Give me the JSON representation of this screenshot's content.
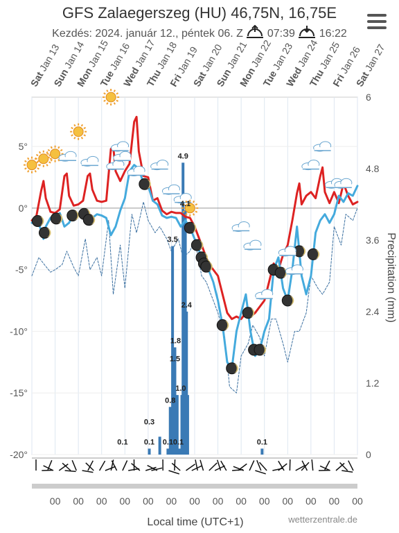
{
  "title": "GFS Zalaegerszeg (HU) 46,75N, 16,75E",
  "subtitle_prefix": "Kezdés: 2024. január 12., péntek 06. Z",
  "sunrise_time": "07:39",
  "sunset_time": "16:22",
  "menu_icon": "hamburger-menu-icon",
  "chart_data": {
    "type": "line",
    "x_axis": {
      "day_labels": [
        {
          "day": "Sat",
          "date": "Jan 13"
        },
        {
          "day": "Sun",
          "date": "Jan 14"
        },
        {
          "day": "Mon",
          "date": "Jan 15"
        },
        {
          "day": "Tue",
          "date": "Jan 16"
        },
        {
          "day": "Wed",
          "date": "Jan 17"
        },
        {
          "day": "Thu",
          "date": "Jan 18"
        },
        {
          "day": "Fri",
          "date": "Jan 19"
        },
        {
          "day": "Sat",
          "date": "Jan 20"
        },
        {
          "day": "Sun",
          "date": "Jan 21"
        },
        {
          "day": "Mon",
          "date": "Jan 22"
        },
        {
          "day": "Tue",
          "date": "Jan 23"
        },
        {
          "day": "Wed",
          "date": "Jan 24"
        },
        {
          "day": "Thu",
          "date": "Jan 25"
        },
        {
          "day": "Fri",
          "date": "Jan 26"
        },
        {
          "day": "Sat",
          "date": "Jan 27"
        }
      ],
      "hour_tick_label": "00",
      "xlabel": "Local time (UTC+1)"
    },
    "y_left": {
      "ticks": [
        "5°",
        "0°",
        "-5°",
        "-10°",
        "-15°",
        "-20°"
      ],
      "values": [
        5,
        0,
        -5,
        -10,
        -15,
        -20
      ],
      "ylim": [
        -20,
        9
      ]
    },
    "y_right": {
      "ticks": [
        "6",
        "4.8",
        "3.6",
        "2.4",
        "1.2",
        "0"
      ],
      "values": [
        6,
        4.8,
        3.6,
        2.4,
        1.2,
        0
      ],
      "ylabel": "Precipitation (mm)",
      "ylim": [
        0,
        6
      ]
    },
    "series": [
      {
        "name": "",
        "kind": "max_temperature",
        "color": "#dd2222",
        "x": [
          0.0,
          0.2,
          0.4,
          0.5,
          0.6,
          0.8,
          1.0,
          1.2,
          1.4,
          1.5,
          1.6,
          1.8,
          2.0,
          2.2,
          2.4,
          2.5,
          2.6,
          2.8,
          3.0,
          3.2,
          3.4,
          3.5,
          3.6,
          3.8,
          4.0,
          4.2,
          4.4,
          4.5,
          4.6,
          4.8,
          5.0,
          5.2,
          5.4,
          5.6,
          5.8,
          6.0,
          6.2,
          6.4,
          6.6,
          6.8,
          7.0,
          7.2,
          7.4,
          7.6,
          7.8,
          8.0,
          8.2,
          8.4,
          8.6,
          8.8,
          9.0,
          9.2,
          9.4,
          9.6,
          9.8,
          10.0,
          10.2,
          10.4,
          10.6,
          10.8,
          11.0,
          11.2,
          11.4,
          11.5,
          11.6,
          11.8,
          12.0,
          12.2,
          12.4,
          12.5,
          12.6,
          12.8,
          13.0,
          13.2,
          13.4,
          13.6,
          13.8,
          14.0
        ],
        "y": [
          -1.0,
          -0.6,
          1.4,
          2.2,
          0.8,
          -0.3,
          -0.4,
          -0.1,
          2.6,
          2.8,
          1.0,
          0.2,
          0.3,
          0.6,
          2.6,
          2.8,
          1.5,
          0.6,
          0.5,
          0.6,
          4.8,
          5.0,
          3.0,
          2.2,
          3.0,
          3.6,
          7.0,
          7.4,
          4.6,
          2.6,
          2.5,
          0.6,
          0.8,
          -0.2,
          -0.5,
          -0.3,
          -0.4,
          -0.4,
          -0.7,
          -0.8,
          -1.5,
          -2.5,
          -3.5,
          -4.5,
          -5.0,
          -5.5,
          -7.0,
          -8.5,
          -9.0,
          -8.8,
          -9.0,
          -8.5,
          -8.8,
          -8.5,
          -8.0,
          -7.5,
          -6.0,
          -4.5,
          -5.0,
          -3.8,
          -3.0,
          -1.0,
          1.2,
          2.0,
          0.3,
          1.0,
          1.3,
          0.8,
          2.6,
          3.3,
          1.3,
          0.4,
          1.3,
          0.4,
          2.0,
          1.0,
          0.3,
          0.5
        ]
      },
      {
        "name": "",
        "kind": "temperature_2m",
        "color": "#44aadd",
        "x": [
          0.0,
          0.2,
          0.4,
          0.5,
          0.6,
          0.8,
          1.0,
          1.2,
          1.4,
          1.6,
          1.8,
          2.0,
          2.2,
          2.4,
          2.6,
          2.8,
          3.0,
          3.2,
          3.4,
          3.6,
          3.8,
          4.0,
          4.2,
          4.4,
          4.6,
          4.8,
          5.0,
          5.2,
          5.4,
          5.6,
          5.8,
          6.0,
          6.2,
          6.4,
          6.6,
          6.8,
          7.0,
          7.2,
          7.4,
          7.6,
          7.8,
          8.0,
          8.2,
          8.4,
          8.6,
          8.8,
          9.0,
          9.2,
          9.4,
          9.6,
          9.8,
          10.0,
          10.2,
          10.4,
          10.6,
          10.8,
          11.0,
          11.2,
          11.4,
          11.6,
          11.8,
          12.0,
          12.2,
          12.4,
          12.6,
          12.8,
          13.0,
          13.2,
          13.4,
          13.6,
          13.8,
          14.0
        ],
        "y": [
          -1.2,
          -0.8,
          -1.8,
          -2.5,
          -1.5,
          -0.8,
          -1.0,
          -0.4,
          -1.5,
          -1.2,
          -0.4,
          -0.5,
          -0.3,
          -1.0,
          -0.8,
          -0.5,
          -0.6,
          -0.8,
          -2.2,
          -1.5,
          -0.2,
          0.8,
          3.0,
          3.5,
          3.2,
          2.0,
          1.8,
          0.6,
          0.3,
          -0.6,
          -0.8,
          -0.7,
          -0.8,
          -1.5,
          -1.0,
          -1.6,
          -2.5,
          -3.5,
          -4.5,
          -5.0,
          -6.0,
          -7.5,
          -9.5,
          -12.5,
          -13.0,
          -10.0,
          -8.5,
          -7.0,
          -10.0,
          -12.0,
          -11.5,
          -10.0,
          -9.0,
          -5.0,
          -4.0,
          -6.5,
          -7.5,
          -5.0,
          -1.5,
          -5.5,
          -7.0,
          -5.5,
          -2.0,
          -1.0,
          -0.5,
          -1.2,
          -0.5,
          1.0,
          0.5,
          1.2,
          1.0,
          1.8
        ]
      },
      {
        "name": "",
        "kind": "dew_point",
        "color": "#3a6fa0",
        "x": [
          0.0,
          0.3,
          0.5,
          0.8,
          1.0,
          1.3,
          1.5,
          1.8,
          2.0,
          2.3,
          2.5,
          2.8,
          3.0,
          3.3,
          3.5,
          3.8,
          4.0,
          4.3,
          4.5,
          4.8,
          5.0,
          5.3,
          5.5,
          5.8,
          6.0,
          6.3,
          6.5,
          6.8,
          7.0,
          7.3,
          7.5,
          7.8,
          8.0,
          8.3,
          8.5,
          8.8,
          9.0,
          9.3,
          9.5,
          9.8,
          10.0,
          10.3,
          10.5,
          10.8,
          11.0,
          11.3,
          11.5,
          11.8,
          12.0,
          12.3,
          12.5,
          12.8,
          13.0,
          13.3,
          13.5,
          13.8,
          14.0
        ],
        "y": [
          -5.5,
          -4.0,
          -4.5,
          -5.2,
          -5.0,
          -4.6,
          -3.5,
          -4.8,
          -5.5,
          -2.5,
          -5.0,
          -4.0,
          -5.5,
          -1.0,
          -7.0,
          -3.0,
          -6.5,
          -0.5,
          -2.0,
          0.5,
          -1.0,
          -2.0,
          -1.5,
          -2.5,
          -3.5,
          -2.5,
          -4.0,
          -3.5,
          -2.5,
          -5.5,
          -6.0,
          -7.5,
          -8.5,
          -10.5,
          -14.5,
          -15.0,
          -12.0,
          -11.0,
          -9.5,
          -10.5,
          -12.0,
          -9.0,
          -9.0,
          -11.0,
          -12.5,
          -10.0,
          -10.0,
          -8.5,
          -5.5,
          -6.5,
          -7.0,
          -6.0,
          -1.5,
          -3.0,
          -0.5,
          -1.0,
          0.0
        ]
      },
      {
        "name": "",
        "kind": "precipitation_mm",
        "color": "#3a7ab5",
        "x": [
          5.05,
          5.5,
          5.85,
          5.95,
          6.05,
          6.1,
          6.15,
          6.2,
          6.25,
          6.35,
          6.45,
          6.5,
          6.55,
          6.6,
          6.65,
          6.7,
          9.9
        ],
        "y": [
          0.1,
          0.3,
          0.1,
          0.8,
          3.5,
          1.5,
          1.8,
          0.8,
          1.0,
          0.1,
          1.0,
          4.9,
          1.2,
          4.1,
          2.4,
          1.0,
          0.1
        ],
        "bar_labels_shown": [
          {
            "x": 3.9,
            "text": "0.1"
          },
          {
            "x": 5.05,
            "text": "0.1"
          },
          {
            "x": 5.05,
            "text": "0.3",
            "above": true
          },
          {
            "x": 5.85,
            "text": "0.1"
          },
          {
            "x": 5.95,
            "text": "0.8"
          },
          {
            "x": 6.05,
            "text": "3.5"
          },
          {
            "x": 6.15,
            "text": "1.5"
          },
          {
            "x": 6.18,
            "text": "1.8"
          },
          {
            "x": 6.3,
            "text": "0.1"
          },
          {
            "x": 6.4,
            "text": "1.0"
          },
          {
            "x": 6.5,
            "text": "4.9"
          },
          {
            "x": 6.6,
            "text": "4.1"
          },
          {
            "x": 6.65,
            "text": "2.4"
          },
          {
            "x": 9.9,
            "text": "0.1"
          }
        ]
      }
    ],
    "weather_icons": [
      {
        "x": 0.0,
        "temp": 3.5,
        "icon": "sun-icon"
      },
      {
        "x": 0.5,
        "temp": 4.0,
        "icon": "sun-icon"
      },
      {
        "x": 1.0,
        "temp": 4.4,
        "icon": "sun-icon"
      },
      {
        "x": 1.55,
        "temp": 4.2,
        "icon": "cloud-icon"
      },
      {
        "x": 2.0,
        "temp": 6.2,
        "icon": "sun-icon"
      },
      {
        "x": 2.5,
        "temp": 3.8,
        "icon": "cloud-icon"
      },
      {
        "x": 3.4,
        "temp": 9.0,
        "icon": "sun-icon"
      },
      {
        "x": 3.8,
        "temp": 5.0,
        "icon": "cloud-icon"
      },
      {
        "x": 3.6,
        "temp": 3.5,
        "icon": "cloud-icon"
      },
      {
        "x": 3.9,
        "temp": 4.2,
        "icon": "cloud-icon"
      },
      {
        "x": 4.5,
        "temp": 3.0,
        "icon": "cloud-icon"
      },
      {
        "x": 5.5,
        "temp": 3.5,
        "icon": "cloud-icon"
      },
      {
        "x": 6.0,
        "temp": 1.5,
        "icon": "cloud-icon"
      },
      {
        "x": 6.5,
        "temp": 0.8,
        "icon": "cloud-icon"
      },
      {
        "x": 6.8,
        "temp": 0.0,
        "icon": "sun-icon"
      },
      {
        "x": 9.0,
        "temp": -1.5,
        "icon": "cloud-icon"
      },
      {
        "x": 9.5,
        "temp": -3.0,
        "icon": "cloud-icon"
      },
      {
        "x": 10.0,
        "temp": -7.0,
        "icon": "cloud-icon"
      },
      {
        "x": 11.0,
        "temp": -3.5,
        "icon": "cloud-icon"
      },
      {
        "x": 11.3,
        "temp": -5.0,
        "icon": "cloud-icon"
      },
      {
        "x": 12.0,
        "temp": 3.5,
        "icon": "cloud-icon"
      },
      {
        "x": 12.5,
        "temp": 5.0,
        "icon": "cloud-icon"
      },
      {
        "x": 13.0,
        "temp": 2.0,
        "icon": "cloud-icon"
      },
      {
        "x": 13.4,
        "temp": 2.0,
        "icon": "cloud-icon"
      }
    ],
    "moon_icons_x": [
      0.25,
      0.55,
      1.05,
      1.75,
      2.25,
      2.45,
      4.85,
      6.8,
      7.1,
      7.3,
      7.4,
      7.5,
      8.2,
      8.6,
      9.3,
      9.55,
      9.8,
      10.4,
      10.7,
      11.0,
      11.5,
      12.1
    ],
    "grid": true,
    "legend": "none"
  },
  "credit": "wetterzentrale.de"
}
